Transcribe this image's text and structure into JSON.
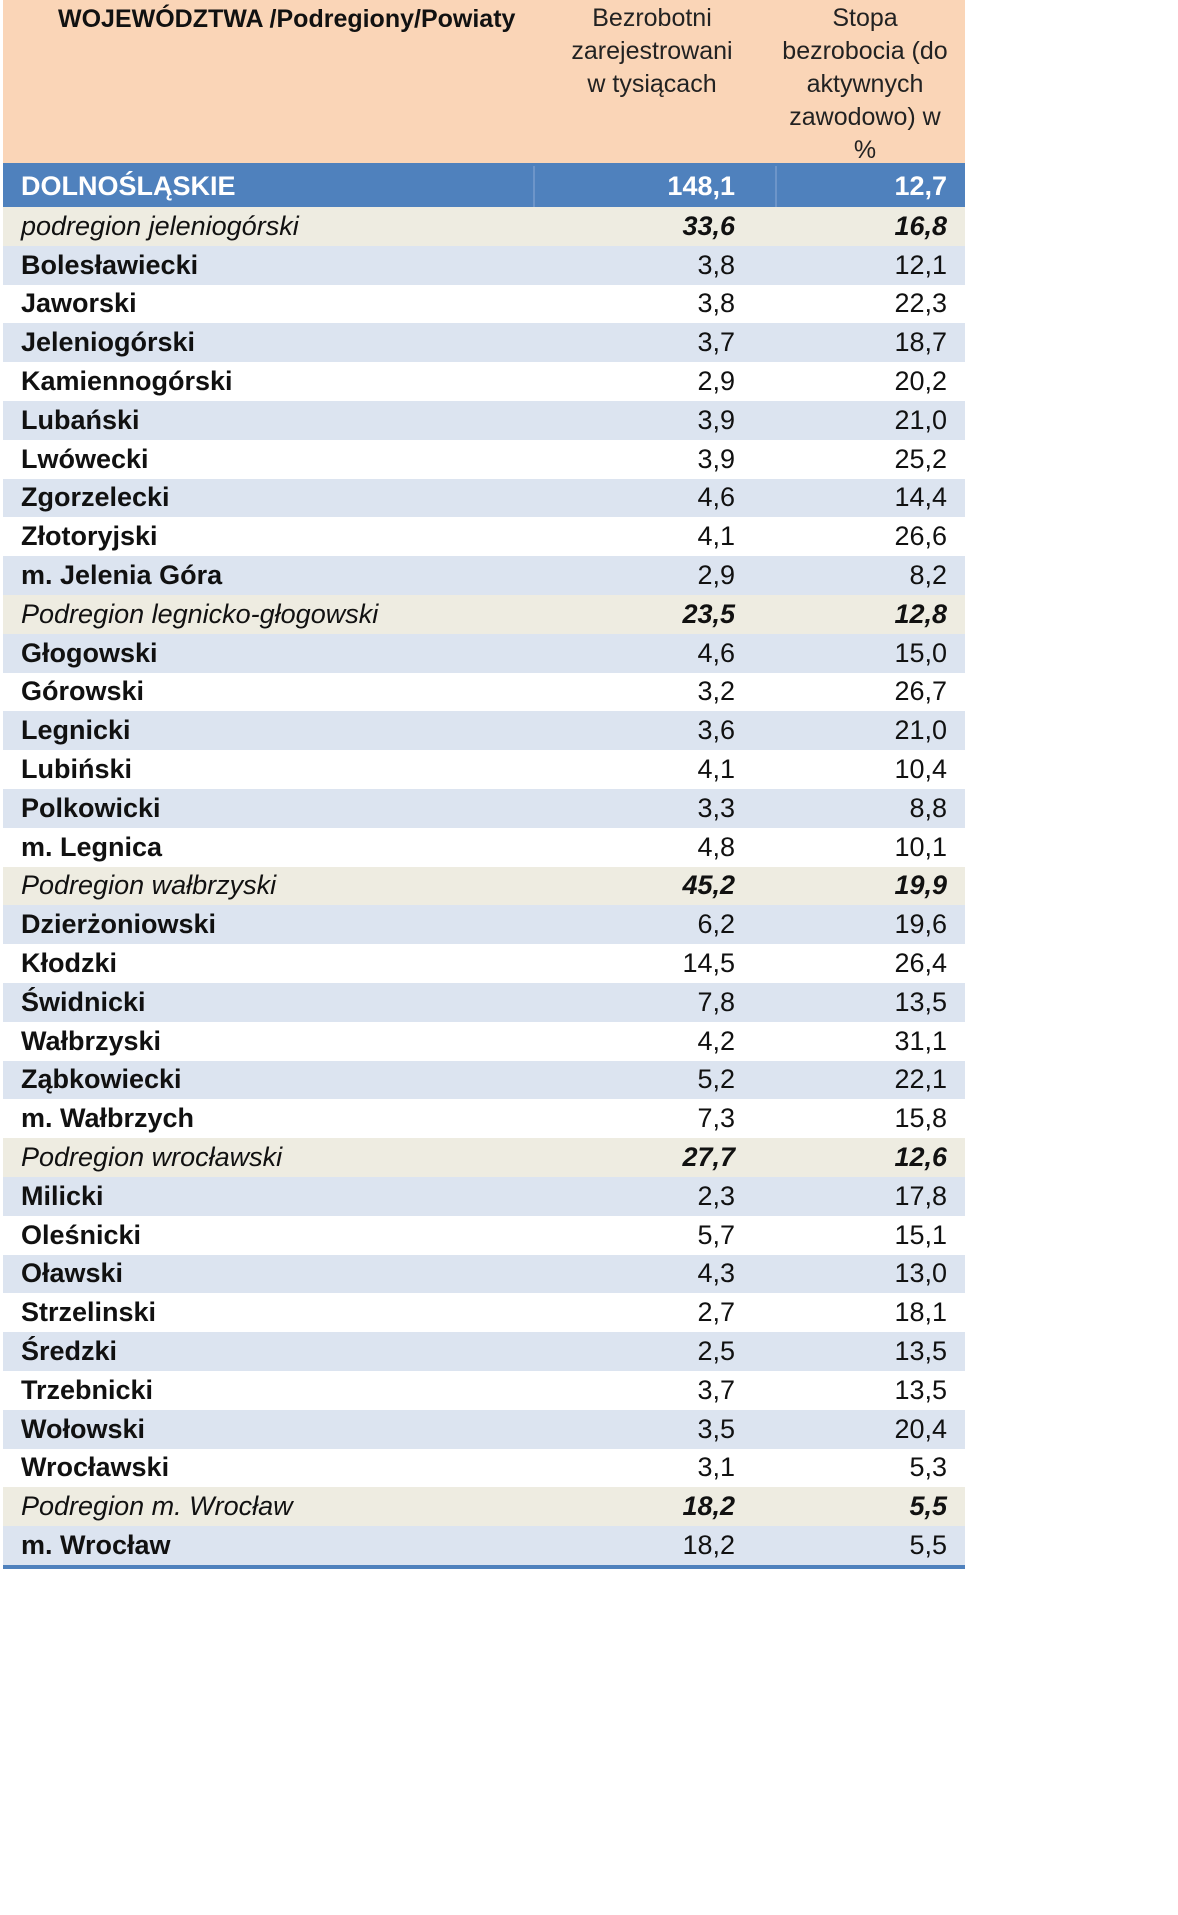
{
  "header": {
    "col1": "WOJEWÓDZTWA /Podregiony/Powiaty",
    "col2": "Bezrobotni\nzarejestrowani\nw tysiącach",
    "col3": "Stopa\nbezrobocia (do\naktywnych\nzawodowo) w\n%"
  },
  "rows": [
    {
      "name": "DOLNOŚLĄSKIE",
      "v1": "148,1",
      "v2": "12,7",
      "type": "voi"
    },
    {
      "name": "podregion  jeleniogórski",
      "v1": "33,6",
      "v2": "16,8",
      "type": "sub"
    },
    {
      "name": "Bolesławiecki",
      "v1": "3,8",
      "v2": "12,1",
      "type": "pow"
    },
    {
      "name": "Jaworski",
      "v1": "3,8",
      "v2": "22,3",
      "type": "pow"
    },
    {
      "name": "Jeleniogórski",
      "v1": "3,7",
      "v2": "18,7",
      "type": "pow"
    },
    {
      "name": "Kamiennogórski",
      "v1": "2,9",
      "v2": "20,2",
      "type": "pow"
    },
    {
      "name": "Lubański",
      "v1": "3,9",
      "v2": "21,0",
      "type": "pow"
    },
    {
      "name": "Lwówecki",
      "v1": "3,9",
      "v2": "25,2",
      "type": "pow"
    },
    {
      "name": "Zgorzelecki",
      "v1": "4,6",
      "v2": "14,4",
      "type": "pow"
    },
    {
      "name": "Złotoryjski",
      "v1": "4,1",
      "v2": "26,6",
      "type": "pow"
    },
    {
      "name": "m. Jelenia Góra",
      "v1": "2,9",
      "v2": "8,2",
      "type": "pow"
    },
    {
      "name": "Podregion legnicko-głogowski",
      "v1": "23,5",
      "v2": "12,8",
      "type": "sub"
    },
    {
      "name": "Głogowski",
      "v1": "4,6",
      "v2": "15,0",
      "type": "pow"
    },
    {
      "name": "Górowski",
      "v1": "3,2",
      "v2": "26,7",
      "type": "pow"
    },
    {
      "name": "Legnicki",
      "v1": "3,6",
      "v2": "21,0",
      "type": "pow"
    },
    {
      "name": "Lubiński",
      "v1": "4,1",
      "v2": "10,4",
      "type": "pow"
    },
    {
      "name": "Polkowicki",
      "v1": "3,3",
      "v2": "8,8",
      "type": "pow"
    },
    {
      "name": "m. Legnica",
      "v1": "4,8",
      "v2": "10,1",
      "type": "pow"
    },
    {
      "name": "Podregion wałbrzyski",
      "v1": "45,2",
      "v2": "19,9",
      "type": "sub"
    },
    {
      "name": "Dzierżoniowski",
      "v1": "6,2",
      "v2": "19,6",
      "type": "pow"
    },
    {
      "name": "Kłodzki",
      "v1": "14,5",
      "v2": "26,4",
      "type": "pow"
    },
    {
      "name": "Świdnicki",
      "v1": "7,8",
      "v2": "13,5",
      "type": "pow"
    },
    {
      "name": "Wałbrzyski",
      "v1": "4,2",
      "v2": "31,1",
      "type": "pow"
    },
    {
      "name": "Ząbkowiecki",
      "v1": "5,2",
      "v2": "22,1",
      "type": "pow"
    },
    {
      "name": "m. Wałbrzych",
      "v1": "7,3",
      "v2": "15,8",
      "type": "pow"
    },
    {
      "name": "Podregion wrocławski",
      "v1": "27,7",
      "v2": "12,6",
      "type": "sub"
    },
    {
      "name": "Milicki",
      "v1": "2,3",
      "v2": "17,8",
      "type": "pow"
    },
    {
      "name": "Oleśnicki",
      "v1": "5,7",
      "v2": "15,1",
      "type": "pow"
    },
    {
      "name": "Oławski",
      "v1": "4,3",
      "v2": "13,0",
      "type": "pow"
    },
    {
      "name": "Strzelinski",
      "v1": "2,7",
      "v2": "18,1",
      "type": "pow"
    },
    {
      "name": "Średzki",
      "v1": "2,5",
      "v2": "13,5",
      "type": "pow"
    },
    {
      "name": "Trzebnicki",
      "v1": "3,7",
      "v2": "13,5",
      "type": "pow"
    },
    {
      "name": "Wołowski",
      "v1": "3,5",
      "v2": "20,4",
      "type": "pow"
    },
    {
      "name": "Wrocławski",
      "v1": "3,1",
      "v2": "5,3",
      "type": "pow"
    },
    {
      "name": "Podregion m. Wrocław",
      "v1": "18,2",
      "v2": "5,5",
      "type": "sub"
    },
    {
      "name": "m. Wrocław",
      "v1": "18,2",
      "v2": "5,5",
      "type": "pow"
    }
  ],
  "colors": {
    "header_bg": "#fad5b7",
    "voivodeship_bg": "#4f81bd",
    "subregion_bg": "#eeece1",
    "band_bg": "#dce4f0"
  }
}
